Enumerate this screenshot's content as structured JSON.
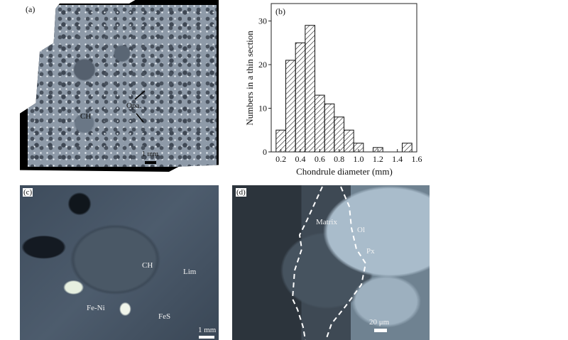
{
  "panels": {
    "a": {
      "label": "(a)",
      "annotations": {
        "chondrule": "CH",
        "opaque": "Opa.",
        "scale": "1 mm"
      }
    },
    "b": {
      "label": "(b)"
    },
    "c": {
      "label": "(c)",
      "annotations": {
        "chondrule": "CH",
        "limonite": "Lim",
        "metal": "Fe-Ni",
        "sulfide": "FeS",
        "scale": "1 mm"
      }
    },
    "d": {
      "label": "(d)",
      "annotations": {
        "matrix": "Matrix",
        "olivine": "Ol",
        "pyroxene": "Px",
        "scale": "20 μm"
      }
    }
  },
  "chart_data": {
    "type": "bar",
    "title": "",
    "xlabel": "Chondrule diameter (mm)",
    "ylabel": "Numbers in a thin section",
    "x": [
      0.2,
      0.3,
      0.4,
      0.5,
      0.6,
      0.7,
      0.8,
      0.9,
      1.0,
      1.1,
      1.2,
      1.3,
      1.4,
      1.5
    ],
    "values": [
      5,
      21,
      25,
      29,
      13,
      11,
      8,
      5,
      2,
      0,
      1,
      0,
      0,
      2
    ],
    "bin_width": 0.1,
    "xlim": [
      0.1,
      1.6
    ],
    "ylim": [
      0,
      34
    ],
    "xticks": [
      "0.2",
      "0.4",
      "0.6",
      "0.8",
      "1.0",
      "1.2",
      "1.4",
      "1.6"
    ],
    "yticks": [
      "0",
      "10",
      "20",
      "30"
    ],
    "fill": "diagonal hatch",
    "grid": false,
    "colors": {
      "bar_stroke": "#111111",
      "hatch": "#111111"
    }
  }
}
